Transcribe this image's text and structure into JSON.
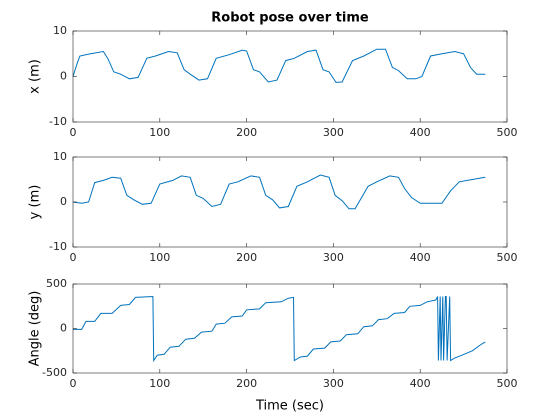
{
  "chart_data": [
    {
      "type": "line",
      "title": "Robot pose over time",
      "ylabel": "x (m)",
      "color": "#0072bd",
      "xlim": [
        0,
        500
      ],
      "ylim": [
        -10,
        10
      ],
      "xticks": [
        0,
        100,
        200,
        300,
        400,
        500
      ],
      "yticks": [
        -10,
        0,
        10
      ],
      "x": [
        0,
        5,
        8,
        20,
        35,
        40,
        47,
        55,
        65,
        75,
        85,
        95,
        110,
        120,
        128,
        135,
        145,
        155,
        165,
        180,
        195,
        200,
        208,
        215,
        225,
        235,
        245,
        255,
        270,
        280,
        288,
        295,
        303,
        310,
        322,
        335,
        350,
        360,
        368,
        375,
        385,
        395,
        402,
        412,
        425,
        440,
        450,
        458,
        465,
        475
      ],
      "values": [
        0,
        3,
        4.5,
        5,
        5.5,
        4,
        1,
        0.5,
        -0.5,
        -0.2,
        4,
        4.5,
        5.5,
        5.2,
        1.5,
        0.5,
        -0.8,
        -0.5,
        4,
        4.8,
        5.8,
        5.6,
        1.5,
        1,
        -1.2,
        -0.8,
        3.5,
        4,
        5.5,
        5.8,
        1.5,
        1,
        -1.3,
        -1.2,
        3.5,
        4.5,
        6,
        6,
        2,
        1.3,
        -0.5,
        -0.5,
        0,
        4.5,
        5,
        5.5,
        5,
        2,
        0.5,
        0.5
      ]
    },
    {
      "type": "line",
      "ylabel": "y (m)",
      "color": "#0072bd",
      "xlim": [
        0,
        500
      ],
      "ylim": [
        -10,
        10
      ],
      "xticks": [
        0,
        100,
        200,
        300,
        400,
        500
      ],
      "yticks": [
        -10,
        0,
        10
      ],
      "x": [
        0,
        10,
        18,
        25,
        35,
        45,
        55,
        62,
        70,
        80,
        90,
        100,
        115,
        125,
        135,
        142,
        150,
        160,
        170,
        180,
        190,
        205,
        215,
        222,
        230,
        238,
        248,
        258,
        270,
        285,
        295,
        302,
        310,
        318,
        325,
        340,
        350,
        365,
        375,
        382,
        390,
        400,
        415,
        425,
        435,
        445,
        460,
        475
      ],
      "values": [
        0,
        -0.3,
        0,
        4.3,
        4.8,
        5.5,
        5.3,
        1.5,
        0.5,
        -0.5,
        -0.3,
        4,
        4.8,
        5.8,
        5.5,
        1.5,
        0.8,
        -1,
        -0.5,
        4,
        4.5,
        5.8,
        5.5,
        1.5,
        0.5,
        -1.3,
        -1,
        3.5,
        4.5,
        6,
        5.5,
        1.5,
        0.3,
        -1.5,
        -1.5,
        3.5,
        4.5,
        5.8,
        5.5,
        3,
        1,
        -0.3,
        -0.3,
        -0.3,
        2.5,
        4.5,
        5,
        5.5
      ]
    },
    {
      "type": "line",
      "ylabel": "Angle (deg)",
      "xlabel": "Time (sec)",
      "color": "#0072bd",
      "xlim": [
        0,
        500
      ],
      "ylim": [
        -500,
        500
      ],
      "xticks": [
        0,
        100,
        200,
        300,
        400,
        500
      ],
      "yticks": [
        -500,
        0,
        500
      ],
      "x": [
        0,
        10,
        15,
        25,
        32,
        45,
        55,
        65,
        72,
        92,
        93,
        97,
        105,
        112,
        122,
        130,
        140,
        148,
        160,
        165,
        175,
        183,
        195,
        200,
        215,
        222,
        240,
        248,
        254,
        255,
        262,
        270,
        277,
        290,
        297,
        308,
        315,
        328,
        335,
        345,
        352,
        362,
        370,
        382,
        388,
        400,
        408,
        418,
        420,
        421,
        423,
        424,
        426,
        427,
        429,
        430,
        431,
        434,
        435,
        440,
        448,
        460,
        470,
        475
      ],
      "values": [
        -10,
        -10,
        80,
        80,
        170,
        170,
        260,
        270,
        350,
        360,
        -360,
        -300,
        -290,
        -210,
        -200,
        -120,
        -110,
        -40,
        -30,
        50,
        60,
        130,
        140,
        210,
        220,
        290,
        300,
        340,
        350,
        -360,
        -320,
        -310,
        -230,
        -220,
        -150,
        -140,
        -70,
        -60,
        20,
        30,
        100,
        110,
        170,
        180,
        250,
        260,
        300,
        320,
        360,
        -360,
        360,
        -360,
        360,
        -360,
        360,
        360,
        -360,
        360,
        -360,
        -330,
        -300,
        -250,
        -180,
        -150
      ]
    }
  ]
}
